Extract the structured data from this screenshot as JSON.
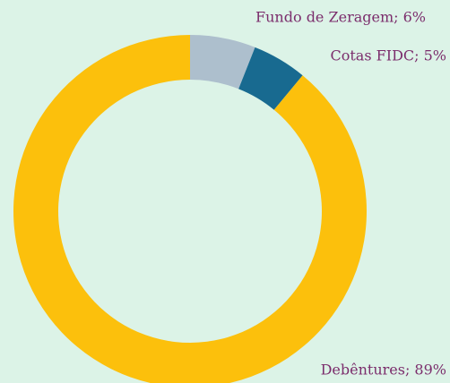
{
  "chart_data": {
    "type": "donut",
    "values": [
      6,
      5,
      89
    ],
    "value_labels": [
      "Fundo de Zeragem; 6%",
      "Cotas FIDC; 5%",
      "Debêntures; 89%"
    ],
    "colors": [
      "#adbfcd",
      "#186a90",
      "#fcc00c"
    ]
  }
}
